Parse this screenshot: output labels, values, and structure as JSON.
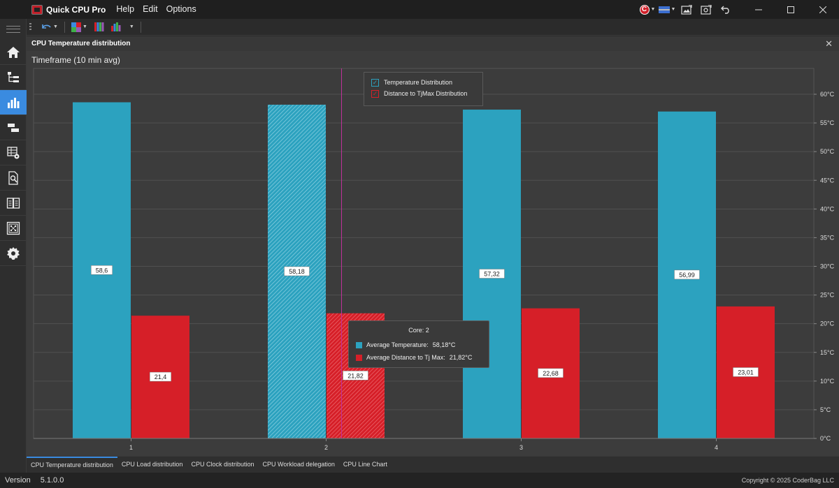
{
  "app": {
    "name": "Quick CPU Pro",
    "menu": [
      "Help",
      "Edit",
      "Options"
    ]
  },
  "panel": {
    "title": "CPU Temperature distribution",
    "timeframe": "Timeframe (10 min avg)"
  },
  "legend": {
    "items": [
      "Temperature Distribution",
      "Distance to TjMax Distribution"
    ]
  },
  "tooltip": {
    "title": "Core: 2",
    "rows": [
      {
        "label": "Average Temperature:",
        "value": "58,18°C"
      },
      {
        "label": "Average Distance to Tj Max:",
        "value": "21,82°C"
      }
    ]
  },
  "chart_data": {
    "type": "bar",
    "categories": [
      "1",
      "2",
      "3",
      "4"
    ],
    "series": [
      {
        "name": "Temperature Distribution",
        "values": [
          58.6,
          58.18,
          57.32,
          56.99
        ],
        "labels": [
          "58,6",
          "58,18",
          "57,32",
          "56,99"
        ],
        "color": "#2ca2bf"
      },
      {
        "name": "Distance to TjMax Distribution",
        "values": [
          21.4,
          21.82,
          22.68,
          23.01
        ],
        "labels": [
          "21,4",
          "21,82",
          "22,68",
          "23,01"
        ],
        "color": "#d61f28"
      }
    ],
    "ylim": [
      0,
      65
    ],
    "y_ticks": [
      0,
      5,
      10,
      15,
      20,
      25,
      30,
      35,
      40,
      45,
      50,
      55,
      60
    ],
    "y_tick_labels": [
      "0°C",
      "5°C",
      "10°C",
      "15°C",
      "20°C",
      "25°C",
      "30°C",
      "35°C",
      "40°C",
      "45°C",
      "50°C",
      "55°C",
      "60°C"
    ],
    "y_axis_position": "right",
    "grid": true,
    "legend_position": "top-center",
    "highlighted_category": "2"
  },
  "tabs": [
    "CPU Temperature distribution",
    "CPU Load distribution",
    "CPU Clock distribution",
    "CPU Workload delegation",
    "CPU Line Chart"
  ],
  "status": {
    "version_label": "Version",
    "version": "5.1.0.0",
    "copyright": "Copyright © 2025 CoderBag LLC"
  },
  "colors": {
    "accent": "#3a8be0",
    "temperature": "#2ca2bf",
    "distance": "#d61f28",
    "cursor_line": "#c0309a"
  }
}
